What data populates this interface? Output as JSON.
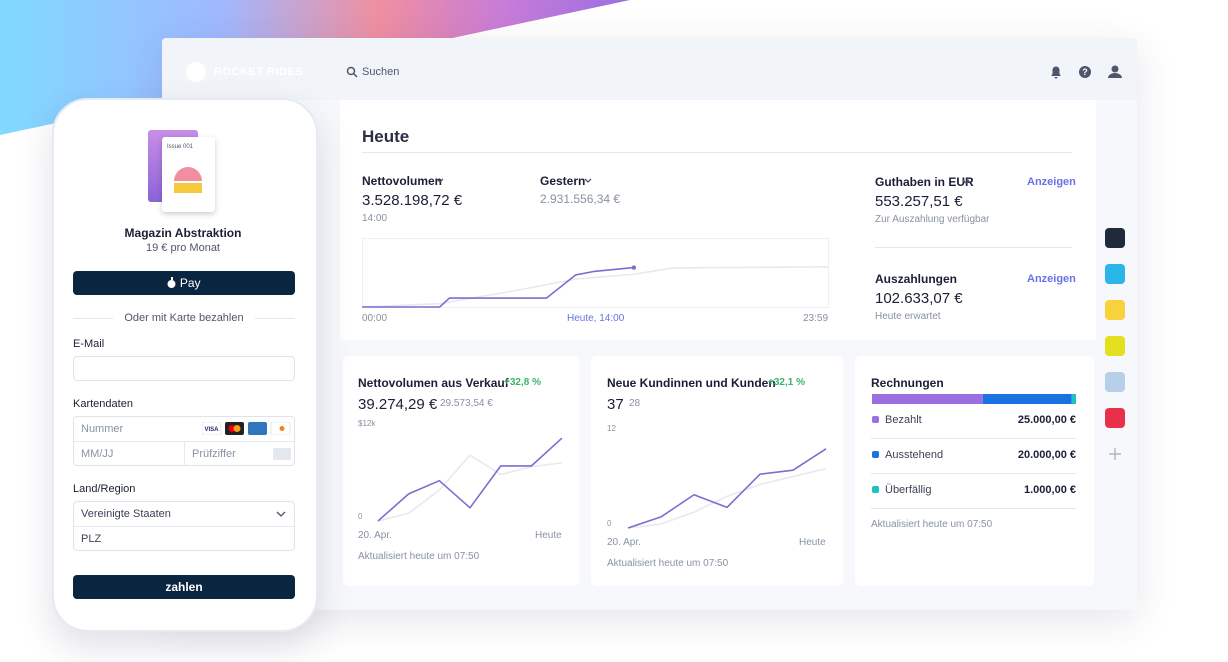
{
  "header": {
    "brand": "ROCKET RIDES",
    "search": "Suchen"
  },
  "phone": {
    "issue": "Issue 001",
    "product": "Magazin Abstraktion",
    "price": "19 € pro Monat",
    "apple_pay": "Pay",
    "divider": "Oder mit Karte bezahlen",
    "email_label": "E-Mail",
    "card_label": "Kartendaten",
    "card_number": "Nummer",
    "expiry": "MM/JJ",
    "cvc": "Prüfziffer",
    "region_label": "Land/Region",
    "country": "Vereinigte Staaten",
    "zip": "PLZ",
    "submit": "zahlen"
  },
  "today": {
    "title": "Heute",
    "net_label": "Nettovolumen",
    "net_value": "3.528.198,72 €",
    "net_time": "14:00",
    "yesterday_label": "Gestern",
    "yesterday_value": "2.931.556,34 €",
    "axis_start": "00:00",
    "axis_now": "Heute, 14:00",
    "axis_end": "23:59",
    "chart": {
      "type": "line",
      "xlim": [
        0,
        24
      ],
      "ylim": [
        0,
        6000000
      ],
      "series": [
        {
          "color": "#e6e9f0",
          "x": [
            0,
            4,
            8,
            11,
            14,
            16,
            24
          ],
          "values": [
            0,
            300000,
            1500000,
            2500000,
            2931556,
            3500000,
            3600000
          ]
        },
        {
          "color": "#7a6fd0",
          "end_marker": true,
          "x": [
            0,
            4,
            4.5,
            9.5,
            11,
            12,
            14
          ],
          "values": [
            0,
            0,
            800000,
            800000,
            2870000,
            3200000,
            3528198
          ]
        }
      ]
    }
  },
  "balance": {
    "label": "Guthaben in EUR",
    "link": "Anzeigen",
    "value": "553.257,51 €",
    "note": "Zur Auszahlung verfügbar"
  },
  "payouts": {
    "label": "Auszahlungen",
    "link": "Anzeigen",
    "value": "102.633,07 €",
    "note": "Heute erwartet"
  },
  "cards": [
    {
      "title": "Nettovolumen aus Verkauf",
      "change": "+32,8 %",
      "value": "39.274,29 €",
      "previous": "29.573,54 €",
      "footer": "Aktualisiert heute um 07:50",
      "chart": {
        "type": "line",
        "categories": [
          "20. Apr.",
          null,
          null,
          null,
          null,
          null,
          "Heute"
        ],
        "ylim": [
          0,
          12000
        ],
        "yticks": [
          0,
          {
            "value": 12000,
            "label": "$12k"
          }
        ],
        "series": [
          {
            "color": "#e6e9f0",
            "values": [
              0,
              1000,
              4000,
              8500,
              6000,
              7000,
              7500
            ]
          },
          {
            "color": "#7a6fd0",
            "values": [
              0,
              3500,
              5200,
              1700,
              7100,
              7100,
              10700
            ]
          }
        ]
      }
    },
    {
      "title": "Neue Kundinnen und Kunden",
      "change": "+32,1 %",
      "value": "37",
      "previous": "28",
      "footer": "Aktualisiert heute um 07:50",
      "chart": {
        "type": "line",
        "categories": [
          "20. Apr.",
          null,
          null,
          null,
          null,
          null,
          "Heute"
        ],
        "ylim": [
          0,
          12
        ],
        "yticks": [
          0,
          12
        ],
        "series": [
          {
            "color": "#e6e9f0",
            "values": [
              0,
              0.5,
              2,
              4,
              5.5,
              6.5,
              7.5
            ]
          },
          {
            "color": "#7a6fd0",
            "values": [
              0,
              1.4,
              4.2,
              2.6,
              6.8,
              7.3,
              10
            ]
          }
        ]
      }
    }
  ],
  "invoices": {
    "title": "Rechnungen",
    "footer": "Aktualisiert heute um 07:50",
    "items": [
      {
        "name": "Bezahlt",
        "value": 25000,
        "value_label": "25.000,00 €",
        "color": "#9b6fe0"
      },
      {
        "name": "Ausstehend",
        "value": 20000,
        "value_label": "20.000,00 €",
        "color": "#1a73e0"
      },
      {
        "name": "Überfällig",
        "value": 1000,
        "value_label": "1.000,00 €",
        "color": "#1fc2c0"
      }
    ]
  }
}
